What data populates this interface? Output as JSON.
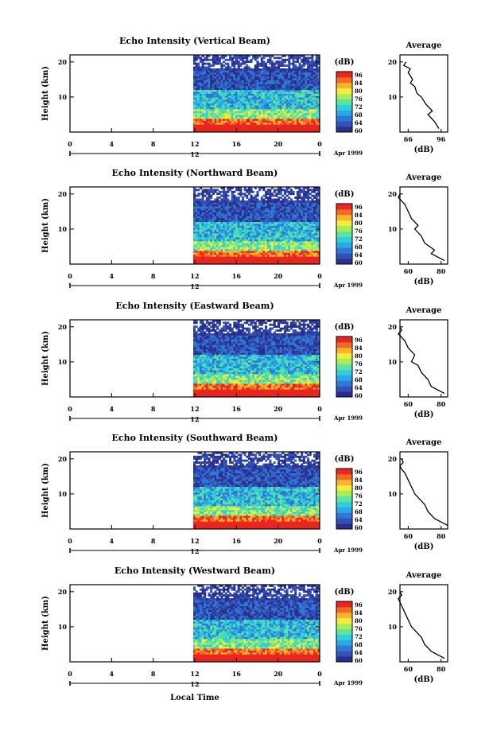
{
  "colors": {
    "scale": [
      "#2b2f8c",
      "#3150b8",
      "#2f79d6",
      "#2ba6e6",
      "#2fd0d8",
      "#5fe3a0",
      "#a8ec5a",
      "#f2ec3a",
      "#f8b52c",
      "#f06a28",
      "#e8261f"
    ]
  },
  "shared": {
    "colorbar_unit": "(dB)",
    "colorbar_ticks": [
      "96",
      "84",
      "80",
      "76",
      "72",
      "68",
      "64",
      "60"
    ],
    "ylabel": "Height (km)",
    "x_ticks": [
      "0",
      "4",
      "8",
      "12",
      "16",
      "20",
      "0"
    ],
    "date_day": "12",
    "date_label": "Apr 1999",
    "avg_title": "Average",
    "avg_xlabel": "(dB)",
    "y_ticks": [
      "20",
      "10"
    ],
    "bottom_xlabel": "Local Time"
  },
  "chart_data": [
    {
      "type": "heatmap",
      "title": "Echo Intensity (Vertical Beam)",
      "avg_ticks": [
        "66",
        "96"
      ],
      "avg_profile": [
        [
          94,
          1
        ],
        [
          90,
          3
        ],
        [
          84,
          5
        ],
        [
          88,
          6
        ],
        [
          82,
          8
        ],
        [
          78,
          10
        ],
        [
          74,
          11
        ],
        [
          72,
          13
        ],
        [
          68,
          14
        ],
        [
          70,
          15
        ],
        [
          66,
          17
        ],
        [
          68,
          18
        ],
        [
          62,
          19
        ],
        [
          64,
          20
        ]
      ]
    },
    {
      "type": "heatmap",
      "title": "Echo Intensity (Northward Beam)",
      "avg_ticks": [
        "60",
        "80"
      ],
      "avg_profile": [
        [
          82,
          1
        ],
        [
          78,
          2
        ],
        [
          74,
          3
        ],
        [
          76,
          4
        ],
        [
          70,
          6
        ],
        [
          68,
          8
        ],
        [
          64,
          10
        ],
        [
          66,
          11
        ],
        [
          62,
          13
        ],
        [
          60,
          15
        ],
        [
          58,
          17
        ],
        [
          56,
          18
        ],
        [
          54,
          19
        ],
        [
          55,
          20
        ]
      ]
    },
    {
      "type": "heatmap",
      "title": "Echo Intensity (Eastward Beam)",
      "avg_ticks": [
        "60",
        "80"
      ],
      "avg_profile": [
        [
          82,
          1
        ],
        [
          78,
          2
        ],
        [
          74,
          3
        ],
        [
          72,
          5
        ],
        [
          68,
          7
        ],
        [
          66,
          9
        ],
        [
          62,
          10
        ],
        [
          64,
          12
        ],
        [
          60,
          14
        ],
        [
          58,
          16
        ],
        [
          56,
          17
        ],
        [
          54,
          18
        ],
        [
          56,
          19
        ],
        [
          55,
          20
        ]
      ]
    },
    {
      "type": "heatmap",
      "title": "Echo Intensity (Southward Beam)",
      "avg_ticks": [
        "60",
        "80"
      ],
      "avg_profile": [
        [
          84,
          1
        ],
        [
          80,
          2
        ],
        [
          76,
          3
        ],
        [
          72,
          5
        ],
        [
          70,
          7
        ],
        [
          66,
          9
        ],
        [
          64,
          10
        ],
        [
          62,
          12
        ],
        [
          60,
          14
        ],
        [
          58,
          16
        ],
        [
          56,
          17
        ],
        [
          55,
          18
        ],
        [
          57,
          19
        ],
        [
          56,
          20
        ]
      ]
    },
    {
      "type": "heatmap",
      "title": "Echo Intensity (Westward Beam)",
      "avg_ticks": [
        "60",
        "80"
      ],
      "avg_profile": [
        [
          82,
          1
        ],
        [
          78,
          2
        ],
        [
          74,
          3
        ],
        [
          70,
          5
        ],
        [
          68,
          7
        ],
        [
          64,
          9
        ],
        [
          62,
          10
        ],
        [
          60,
          12
        ],
        [
          58,
          14
        ],
        [
          56,
          16
        ],
        [
          55,
          17
        ],
        [
          54,
          18
        ],
        [
          56,
          19
        ],
        [
          55,
          20
        ]
      ]
    }
  ]
}
